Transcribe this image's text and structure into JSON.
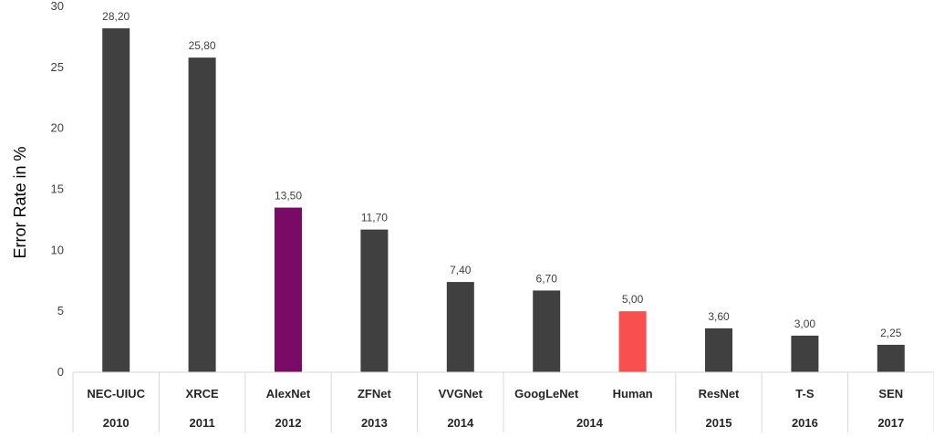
{
  "chart_data": {
    "type": "bar",
    "title": "",
    "ylabel": "Error Rate in %",
    "xlabel": "",
    "ylim": [
      0,
      30
    ],
    "yticks": [
      0,
      5,
      10,
      15,
      20,
      25,
      30
    ],
    "grid": false,
    "legend": "none",
    "categories": [
      "NEC-UIUC",
      "XRCE",
      "AlexNet",
      "ZFNet",
      "VVGNet",
      "GoogLeNet",
      "Human",
      "ResNet",
      "T-S",
      "SEN"
    ],
    "values": [
      28.2,
      25.8,
      13.5,
      11.7,
      7.4,
      6.7,
      5.0,
      3.6,
      3.0,
      2.25
    ],
    "data_labels": [
      "28,20",
      "25,80",
      "13,50",
      "11,70",
      "7,40",
      "6,70",
      "5,00",
      "3,60",
      "3,00",
      "2,25"
    ],
    "year_groups": [
      {
        "label": "2010",
        "span": 1
      },
      {
        "label": "2011",
        "span": 1
      },
      {
        "label": "2012",
        "span": 1
      },
      {
        "label": "2013",
        "span": 1
      },
      {
        "label": "2014",
        "span": 1
      },
      {
        "label": "2014",
        "span": 2
      },
      {
        "label": "2015",
        "span": 1
      },
      {
        "label": "2016",
        "span": 1
      },
      {
        "label": "2017",
        "span": 1
      }
    ],
    "colors": {
      "default": "#404040",
      "AlexNet": "#7b0a66",
      "Human": "#f94f4f",
      "axis": "#d9d9d9"
    }
  }
}
